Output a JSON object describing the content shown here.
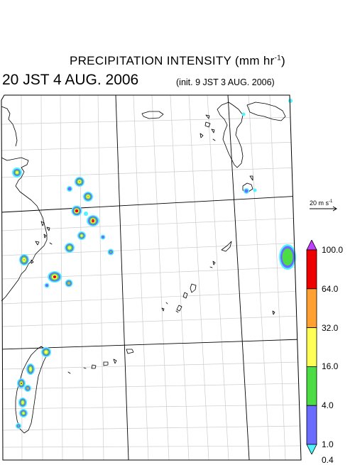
{
  "header": {
    "title_prefix": "PRECIPITATION INTENSITY (mm hr",
    "title_exp": "-1",
    "title_suffix": ")",
    "valid_time": "20 JST 4 AUG. 2006",
    "init_time": "(init. 9 JST 3 AUG. 2006)"
  },
  "wind_vector": {
    "label_prefix": "20 m s",
    "label_exp": "-1"
  },
  "colorbar": {
    "levels": [
      "0.4",
      "1.0",
      "4.0",
      "16.0",
      "32.0",
      "64.0",
      "100.0"
    ],
    "colors": [
      "#4ff4ff",
      "#6a6cff",
      "#4cdc44",
      "#ffff55",
      "#ffa030",
      "#ee0000",
      "#c040ff"
    ]
  },
  "map": {
    "frame_color": "#000000",
    "grid_color": "#c8c8c8",
    "coast_color": "#000000"
  }
}
